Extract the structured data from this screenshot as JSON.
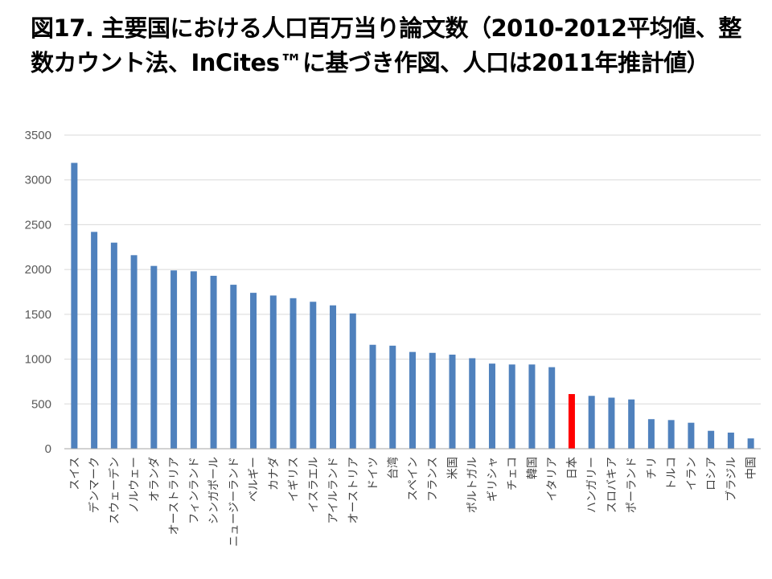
{
  "title": "図17.  主要国における人口百万当り論文数（2010-2012平均値、整数カウント法、InCites™に基づき作図、人口は2011年推計値）",
  "chart_data": {
    "type": "bar",
    "title": "図17.  主要国における人口百万当り論文数（2010-2012平均値、整数カウント法、InCites™に基づき作図、人口は2011年推計値）",
    "xlabel": "",
    "ylabel": "",
    "ylim": [
      0,
      3500
    ],
    "yticks": [
      "0",
      "500",
      "1000",
      "1500",
      "2000",
      "2500",
      "3000",
      "3500"
    ],
    "grid": true,
    "legend": "none",
    "categories": [
      "スイス",
      "デンマーク",
      "スウェーデン",
      "ノルウェー",
      "オランダ",
      "オーストラリア",
      "フィンランド",
      "シンガポール",
      "ニュージーランド",
      "ベルギー",
      "カナダ",
      "イギリス",
      "イスラエル",
      "アイルランド",
      "オーストリア",
      "ドイツ",
      "台湾",
      "スペイン",
      "フランス",
      "米国",
      "ポルトガル",
      "ギリシャ",
      "チェコ",
      "韓国",
      "イタリア",
      "日本",
      "ハンガリー",
      "スロバキア",
      "ポーランド",
      "チリ",
      "トルコ",
      "イラン",
      "ロシア",
      "ブラジル",
      "中国"
    ],
    "values": [
      3190,
      2420,
      2300,
      2160,
      2040,
      1990,
      1980,
      1930,
      1830,
      1740,
      1710,
      1680,
      1640,
      1600,
      1510,
      1160,
      1150,
      1080,
      1070,
      1050,
      1010,
      950,
      940,
      940,
      910,
      610,
      590,
      570,
      550,
      330,
      320,
      290,
      200,
      180,
      115
    ],
    "highlight_category": "日本",
    "colors": {
      "bar": "#4f81bd",
      "highlight": "#ff0000",
      "grid": "#d9d9d9",
      "axis": "#a6a6a6"
    }
  }
}
